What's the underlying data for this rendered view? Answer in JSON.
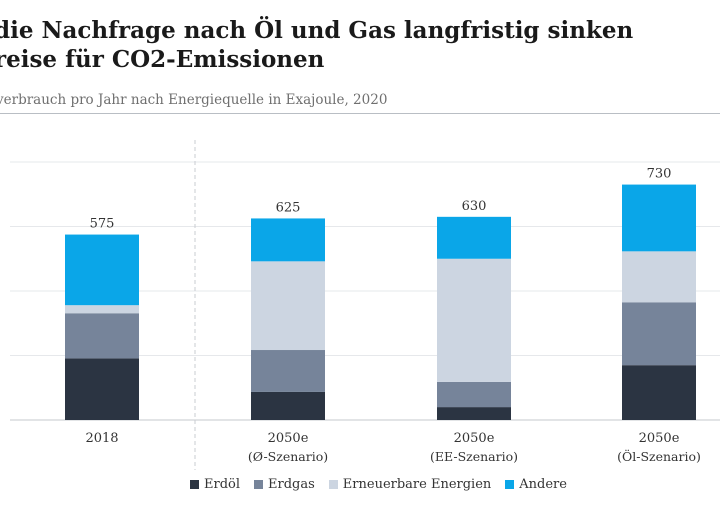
{
  "title_line1": "die Nachfrage nach Öl und Gas langfristig sinken",
  "title_line2": "reise für CO2-Emissionen",
  "subtitle": "verbrauch pro Jahr nach Energiequelle in Exajoule, 2020",
  "colors": {
    "Erdöl": "#2b3442",
    "Erdgas": "#76849a",
    "Erneuerbare Energien": "#ccd5e1",
    "Andere": "#0aa6e8"
  },
  "chart_data": {
    "type": "bar",
    "stacked": true,
    "title": "",
    "xlabel": "",
    "ylabel": "",
    "ylim": [
      0,
      800
    ],
    "grid": true,
    "legend_position": "bottom",
    "categories": [
      [
        "2018",
        ""
      ],
      [
        "2050e",
        "(Ø-Szenario)"
      ],
      [
        "2050e",
        "(EE-Szenario)"
      ],
      [
        "2050e",
        "(Öl-Szenario)"
      ]
    ],
    "series": [
      {
        "name": "Erdöl",
        "values": [
          191,
          87,
          40,
          170
        ]
      },
      {
        "name": "Erdgas",
        "values": [
          140,
          130,
          78,
          195
        ]
      },
      {
        "name": "Erneuerbare Energien",
        "values": [
          25,
          275,
          382,
          158
        ]
      },
      {
        "name": "Andere",
        "values": [
          219,
          133,
          130,
          207
        ]
      }
    ],
    "totals": [
      "575",
      "625",
      "630",
      "730"
    ]
  }
}
